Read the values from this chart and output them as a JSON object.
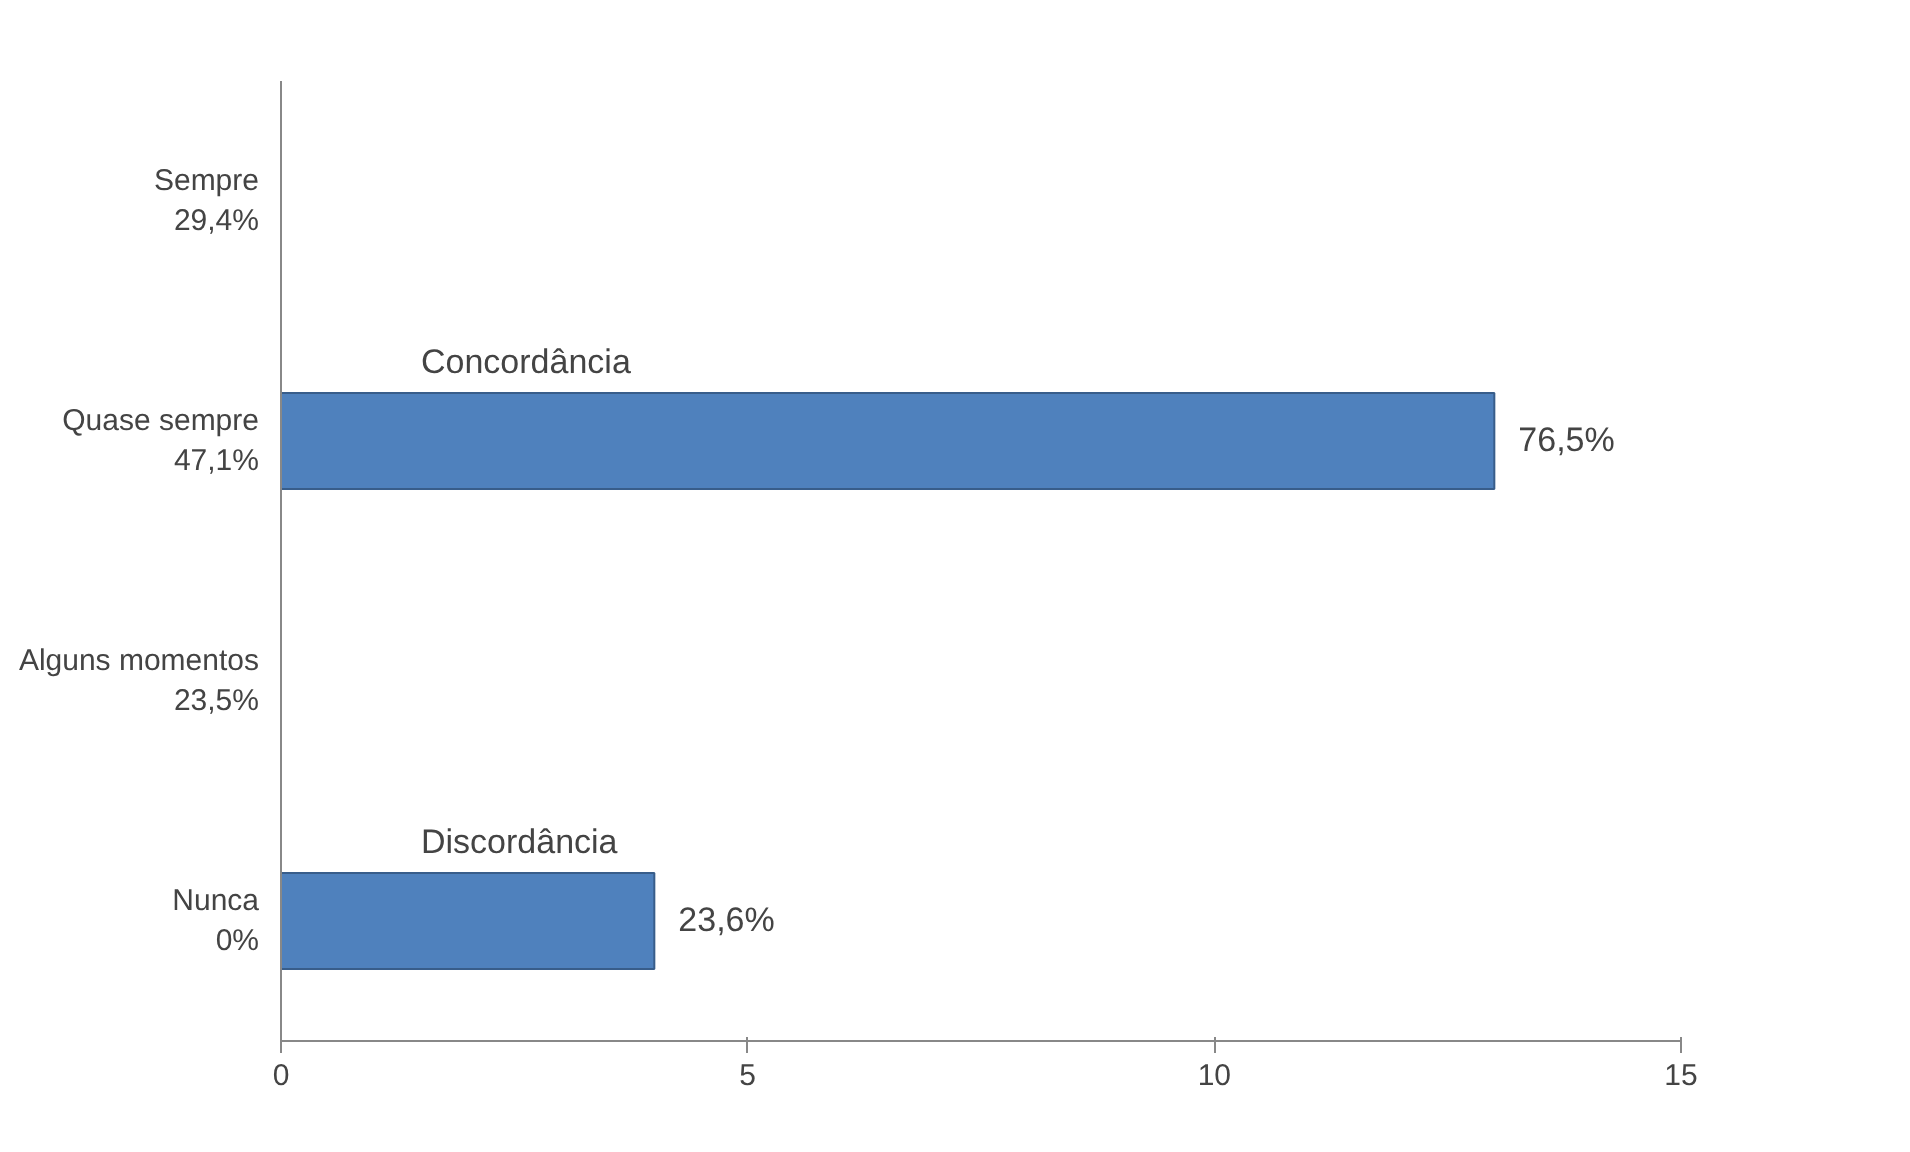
{
  "chart_data": {
    "type": "bar",
    "orientation": "horizontal",
    "categories": [
      "Sempre\n29,4%",
      "Quase sempre\n47,1%",
      "Alguns momentos\n23,5%",
      "Nunca\n0%"
    ],
    "values": [
      null,
      13,
      null,
      4
    ],
    "color": "#4f81bd",
    "xlim": [
      0,
      15
    ],
    "xticks": [
      0,
      5,
      10,
      15
    ],
    "grid": false,
    "annotations": [
      "Concordância",
      "76,5%",
      "Discordância",
      "23,6%"
    ]
  }
}
